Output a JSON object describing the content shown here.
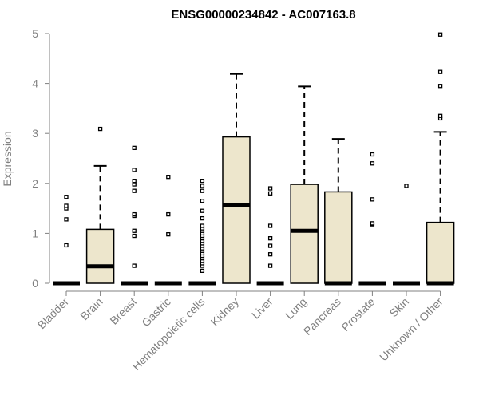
{
  "chart_data": {
    "type": "boxplot",
    "title": "ENSG00000234842 - AC007163.8",
    "xlabel": "",
    "ylabel": "Expression",
    "ylim": [
      0,
      5
    ],
    "yticks": [
      0,
      1,
      2,
      3,
      4,
      5
    ],
    "grid": false,
    "legend": "none",
    "box_fill": "#ede6cc",
    "categories": [
      "Bladder",
      "Brain",
      "Breast",
      "Gastric",
      "Hematopoietic cells",
      "Kidney",
      "Liver",
      "Lung",
      "Pancreas",
      "Prostate",
      "Skin",
      "Unknown / Other"
    ],
    "boxes": [
      {
        "name": "Bladder",
        "q1": 0,
        "median": 0,
        "q3": 0,
        "whisker_low": 0,
        "whisker_high": 0,
        "outliers": [
          0.76,
          1.28,
          1.5,
          1.55,
          1.73
        ]
      },
      {
        "name": "Brain",
        "q1": 0,
        "median": 0.34,
        "q3": 1.08,
        "whisker_low": 0,
        "whisker_high": 2.35,
        "outliers": [
          3.09
        ]
      },
      {
        "name": "Breast",
        "q1": 0,
        "median": 0,
        "q3": 0,
        "whisker_low": 0,
        "whisker_high": 0,
        "outliers": [
          0.35,
          0.95,
          1.05,
          1.35,
          1.38,
          1.85,
          1.98,
          2.05,
          2.27,
          2.71
        ]
      },
      {
        "name": "Gastric",
        "q1": 0,
        "median": 0,
        "q3": 0,
        "whisker_low": 0,
        "whisker_high": 0,
        "outliers": [
          0.98,
          1.38,
          2.13
        ]
      },
      {
        "name": "Hematopoietic cells",
        "q1": 0,
        "median": 0,
        "q3": 0,
        "whisker_low": 0,
        "whisker_high": 0,
        "outliers": [
          0.25,
          0.35,
          0.4,
          0.45,
          0.5,
          0.55,
          0.6,
          0.65,
          0.7,
          0.75,
          0.8,
          0.85,
          0.9,
          0.95,
          1.0,
          1.05,
          1.1,
          1.15,
          1.3,
          1.45,
          1.65,
          1.85,
          1.95,
          2.05
        ]
      },
      {
        "name": "Kidney",
        "q1": 0,
        "median": 1.56,
        "q3": 2.93,
        "whisker_low": 0,
        "whisker_high": 4.19,
        "outliers": []
      },
      {
        "name": "Liver",
        "q1": 0,
        "median": 0,
        "q3": 0,
        "whisker_low": 0,
        "whisker_high": 0,
        "outliers": [
          0.35,
          0.58,
          0.75,
          0.9,
          1.15,
          1.8,
          1.9
        ]
      },
      {
        "name": "Lung",
        "q1": 0,
        "median": 1.05,
        "q3": 1.98,
        "whisker_low": 0,
        "whisker_high": 3.94,
        "outliers": []
      },
      {
        "name": "Pancreas",
        "q1": 0,
        "median": 0,
        "q3": 1.83,
        "whisker_low": 0,
        "whisker_high": 2.89,
        "outliers": []
      },
      {
        "name": "Prostate",
        "q1": 0,
        "median": 0,
        "q3": 0,
        "whisker_low": 0,
        "whisker_high": 0,
        "outliers": [
          1.18,
          1.2,
          1.68,
          2.4,
          2.58
        ]
      },
      {
        "name": "Skin",
        "q1": 0,
        "median": 0,
        "q3": 0,
        "whisker_low": 0,
        "whisker_high": 0,
        "outliers": [
          1.95
        ]
      },
      {
        "name": "Unknown / Other",
        "q1": 0,
        "median": 0,
        "q3": 1.22,
        "whisker_low": 0,
        "whisker_high": 3.03,
        "outliers": [
          3.3,
          3.35,
          3.95,
          4.23,
          4.98
        ]
      }
    ]
  }
}
